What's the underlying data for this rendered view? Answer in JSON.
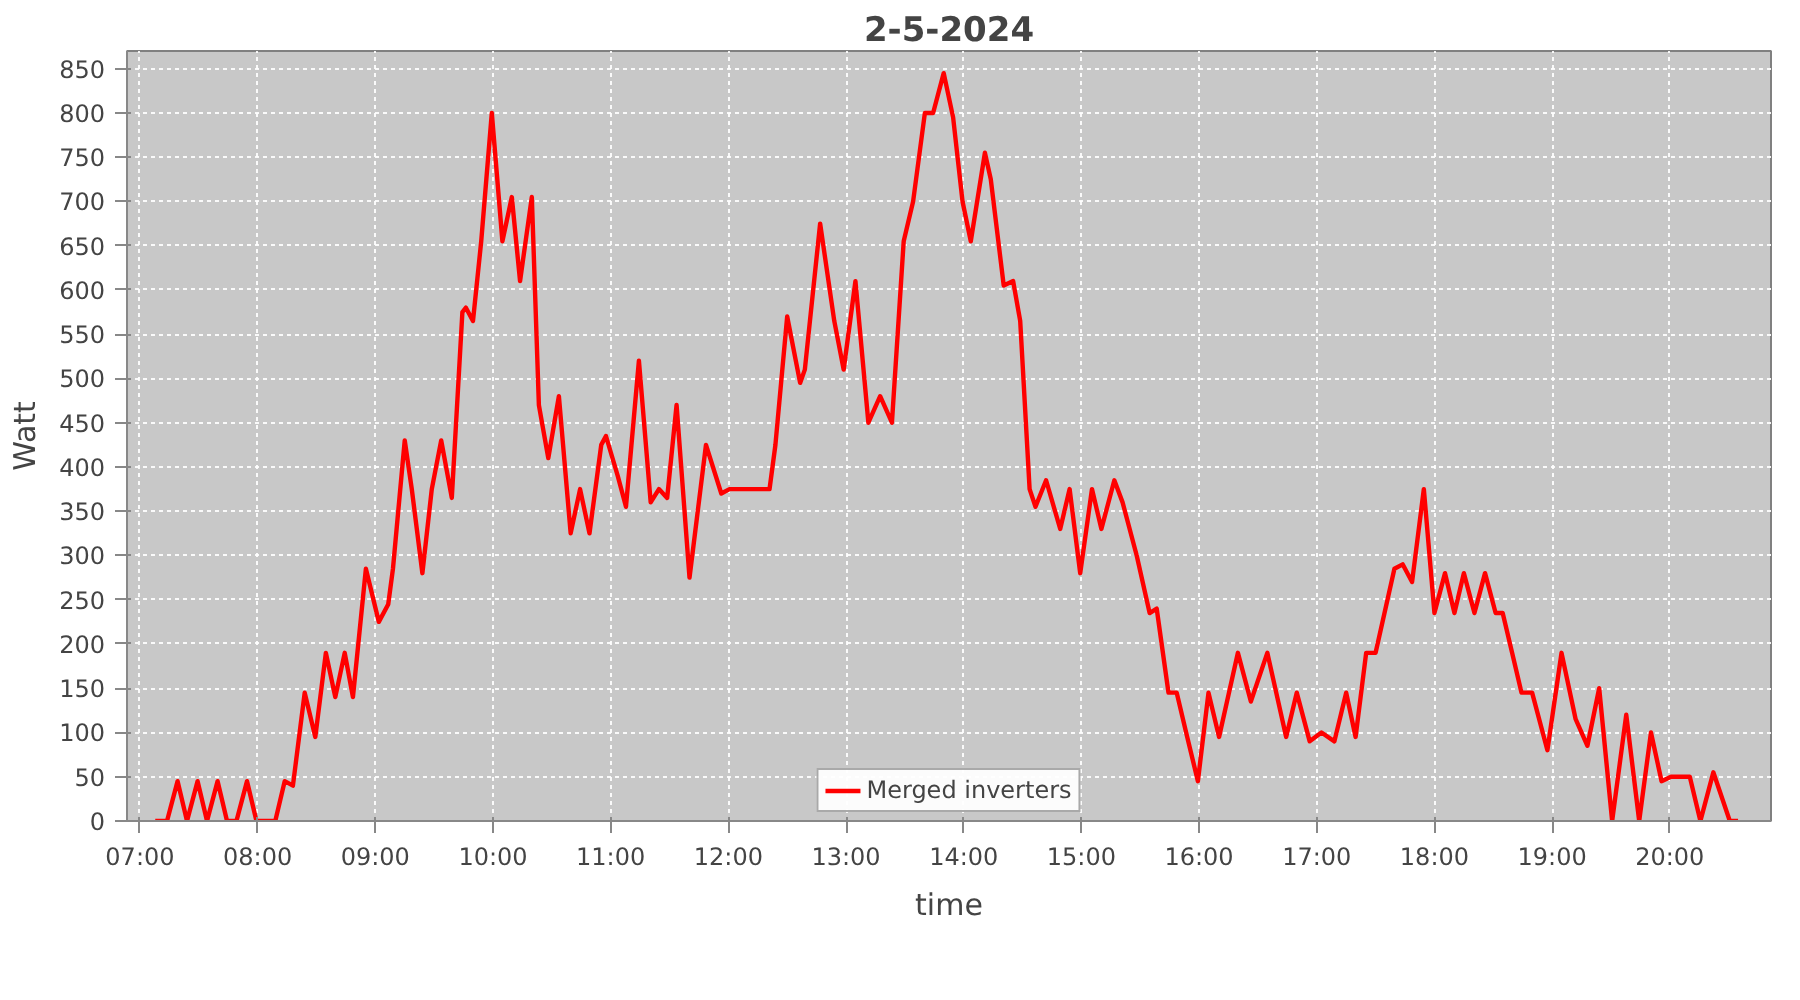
{
  "chart_data": {
    "type": "line",
    "title": "2-5-2024",
    "xlabel": "time",
    "ylabel": "Watt",
    "xlim": [
      6.89,
      20.86
    ],
    "xticks": [
      {
        "value": 7,
        "label": "07:00"
      },
      {
        "value": 8,
        "label": "08:00"
      },
      {
        "value": 9,
        "label": "09:00"
      },
      {
        "value": 10,
        "label": "10:00"
      },
      {
        "value": 11,
        "label": "11:00"
      },
      {
        "value": 12,
        "label": "12:00"
      },
      {
        "value": 13,
        "label": "13:00"
      },
      {
        "value": 14,
        "label": "14:00"
      },
      {
        "value": 15,
        "label": "15:00"
      },
      {
        "value": 16,
        "label": "16:00"
      },
      {
        "value": 17,
        "label": "17:00"
      },
      {
        "value": 18,
        "label": "18:00"
      },
      {
        "value": 19,
        "label": "19:00"
      },
      {
        "value": 20,
        "label": "20:00"
      }
    ],
    "ylim": [
      0,
      870
    ],
    "yticks": [
      0,
      50,
      100,
      150,
      200,
      250,
      300,
      350,
      400,
      450,
      500,
      550,
      600,
      650,
      700,
      750,
      800,
      850
    ],
    "grid": true,
    "legend": "bottom",
    "x": [
      7.13,
      7.23,
      7.32,
      7.4,
      7.49,
      7.57,
      7.66,
      7.74,
      7.82,
      7.91,
      7.99,
      8.08,
      8.15,
      8.23,
      8.3,
      8.4,
      8.49,
      8.58,
      8.66,
      8.74,
      8.81,
      8.92,
      9.03,
      9.11,
      9.15,
      9.25,
      9.31,
      9.4,
      9.48,
      9.56,
      9.65,
      9.74,
      9.77,
      9.83,
      9.9,
      9.99,
      10.08,
      10.16,
      10.23,
      10.33,
      10.39,
      10.47,
      10.56,
      10.66,
      10.74,
      10.82,
      10.92,
      10.96,
      11.06,
      11.13,
      11.24,
      11.34,
      11.41,
      11.48,
      11.56,
      11.67,
      11.81,
      11.94,
      12.01,
      12.35,
      12.4,
      12.5,
      12.61,
      12.65,
      12.78,
      12.9,
      12.98,
      13.08,
      13.19,
      13.29,
      13.39,
      13.49,
      13.57,
      13.67,
      13.74,
      13.83,
      13.91,
      13.99,
      14.06,
      14.18,
      14.23,
      14.34,
      14.42,
      14.48,
      14.56,
      14.61,
      14.7,
      14.82,
      14.9,
      14.99,
      15.09,
      15.17,
      15.28,
      15.35,
      15.47,
      15.58,
      15.64,
      15.74,
      15.81,
      15.89,
      15.99,
      16.08,
      16.17,
      16.33,
      16.44,
      16.58,
      16.74,
      16.83,
      16.94,
      17.04,
      17.15,
      17.25,
      17.33,
      17.42,
      17.5,
      17.66,
      17.73,
      17.81,
      17.91,
      18.0,
      18.09,
      18.17,
      18.25,
      18.34,
      18.43,
      18.52,
      18.58,
      18.66,
      18.74,
      18.83,
      18.96,
      19.08,
      19.2,
      19.3,
      19.4,
      19.51,
      19.63,
      19.74,
      19.84,
      19.93,
      20.01,
      20.13,
      20.17,
      20.26,
      20.37,
      20.51,
      20.58
    ],
    "series": [
      {
        "name": "Merged inverters",
        "color": "#ff0000",
        "values": [
          0,
          0,
          45,
          0,
          45,
          0,
          45,
          0,
          0,
          45,
          0,
          0,
          0,
          45,
          40,
          145,
          95,
          190,
          140,
          190,
          140,
          285,
          225,
          245,
          285,
          430,
          375,
          280,
          375,
          430,
          365,
          575,
          580,
          565,
          655,
          800,
          655,
          705,
          610,
          705,
          470,
          410,
          480,
          325,
          375,
          325,
          425,
          435,
          390,
          355,
          520,
          360,
          375,
          365,
          470,
          275,
          425,
          370,
          375,
          375,
          425,
          570,
          495,
          510,
          675,
          565,
          510,
          610,
          450,
          480,
          450,
          655,
          700,
          800,
          800,
          845,
          795,
          700,
          655,
          755,
          725,
          605,
          610,
          565,
          375,
          355,
          385,
          330,
          375,
          280,
          375,
          330,
          385,
          360,
          300,
          235,
          240,
          145,
          145,
          100,
          45,
          145,
          95,
          190,
          135,
          190,
          95,
          145,
          90,
          100,
          90,
          145,
          95,
          190,
          190,
          285,
          290,
          270,
          375,
          235,
          280,
          235,
          280,
          235,
          280,
          235,
          235,
          190,
          145,
          145,
          80,
          190,
          115,
          85,
          150,
          0,
          120,
          0,
          100,
          45,
          50,
          50,
          50,
          0,
          55,
          0,
          0
        ]
      }
    ]
  }
}
